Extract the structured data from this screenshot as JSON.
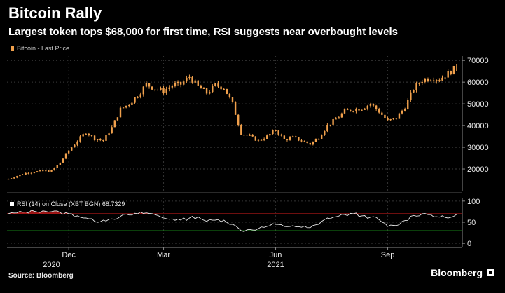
{
  "header": {
    "title": "Bitcoin Rally",
    "subtitle": "Largest token tops $68,000 for first time, RSI suggests near overbought levels",
    "legend_label": "Bitcoin - Last Price"
  },
  "rsi_label": "RSI (14)  on Close (XBT BGN) 68.7329",
  "footer": {
    "source": "Source: Bloomberg",
    "brand": "Bloomberg"
  },
  "colors": {
    "price": "#f0a04c",
    "rsi": "#e8e8e8",
    "overbought": "#b01818",
    "oversold": "#1ea81e",
    "background": "#000000"
  },
  "chart_data": [
    {
      "type": "candlestick",
      "name": "Bitcoin - Last Price",
      "ylim": [
        10000,
        72000
      ],
      "yticks": [
        20000,
        30000,
        40000,
        50000,
        60000,
        70000
      ],
      "ytick_labels": [
        "20000",
        "30000",
        "40000",
        "50000",
        "60000",
        "70000"
      ],
      "xticks": [
        {
          "label": "Dec",
          "t": 7
        },
        {
          "label": "Mar",
          "t": 18
        },
        {
          "label": "Jun",
          "t": 31
        },
        {
          "label": "Sep",
          "t": 44
        }
      ],
      "year_labels": [
        {
          "label": "2020",
          "t": 5
        },
        {
          "label": "2021",
          "t": 31
        }
      ],
      "t_range": [
        0,
        52
      ],
      "values": [
        15400,
        16800,
        18100,
        18700,
        19000,
        19200,
        23000,
        28500,
        33000,
        37000,
        34000,
        33000,
        39000,
        47500,
        50000,
        54000,
        59000,
        57000,
        56000,
        58500,
        59000,
        62500,
        58000,
        55000,
        58500,
        57500,
        50000,
        36500,
        35000,
        33000,
        35000,
        38000,
        33500,
        34500,
        33000,
        31500,
        34500,
        40000,
        43000,
        46500,
        47500,
        48000,
        50000,
        46500,
        42000,
        43500,
        48500,
        57000,
        61000,
        62000,
        61500,
        64000,
        67000
      ]
    },
    {
      "type": "line",
      "name": "RSI (14)",
      "ylim": [
        -8,
        108
      ],
      "yticks": [
        0,
        50,
        100
      ],
      "ytick_labels": [
        "0",
        "50",
        "100"
      ],
      "overbought": 70,
      "oversold": 30,
      "last_value": 68.7329,
      "t_range": [
        0,
        52
      ],
      "values": [
        70,
        72,
        74,
        76,
        77,
        75,
        73,
        70,
        65,
        60,
        52,
        55,
        58,
        64,
        67,
        70,
        72,
        68,
        60,
        58,
        55,
        60,
        63,
        52,
        55,
        55,
        45,
        30,
        33,
        35,
        40,
        45,
        40,
        42,
        38,
        37,
        45,
        60,
        63,
        68,
        70,
        65,
        62,
        56,
        40,
        42,
        54,
        66,
        70,
        68,
        62,
        60,
        68.7
      ]
    }
  ]
}
